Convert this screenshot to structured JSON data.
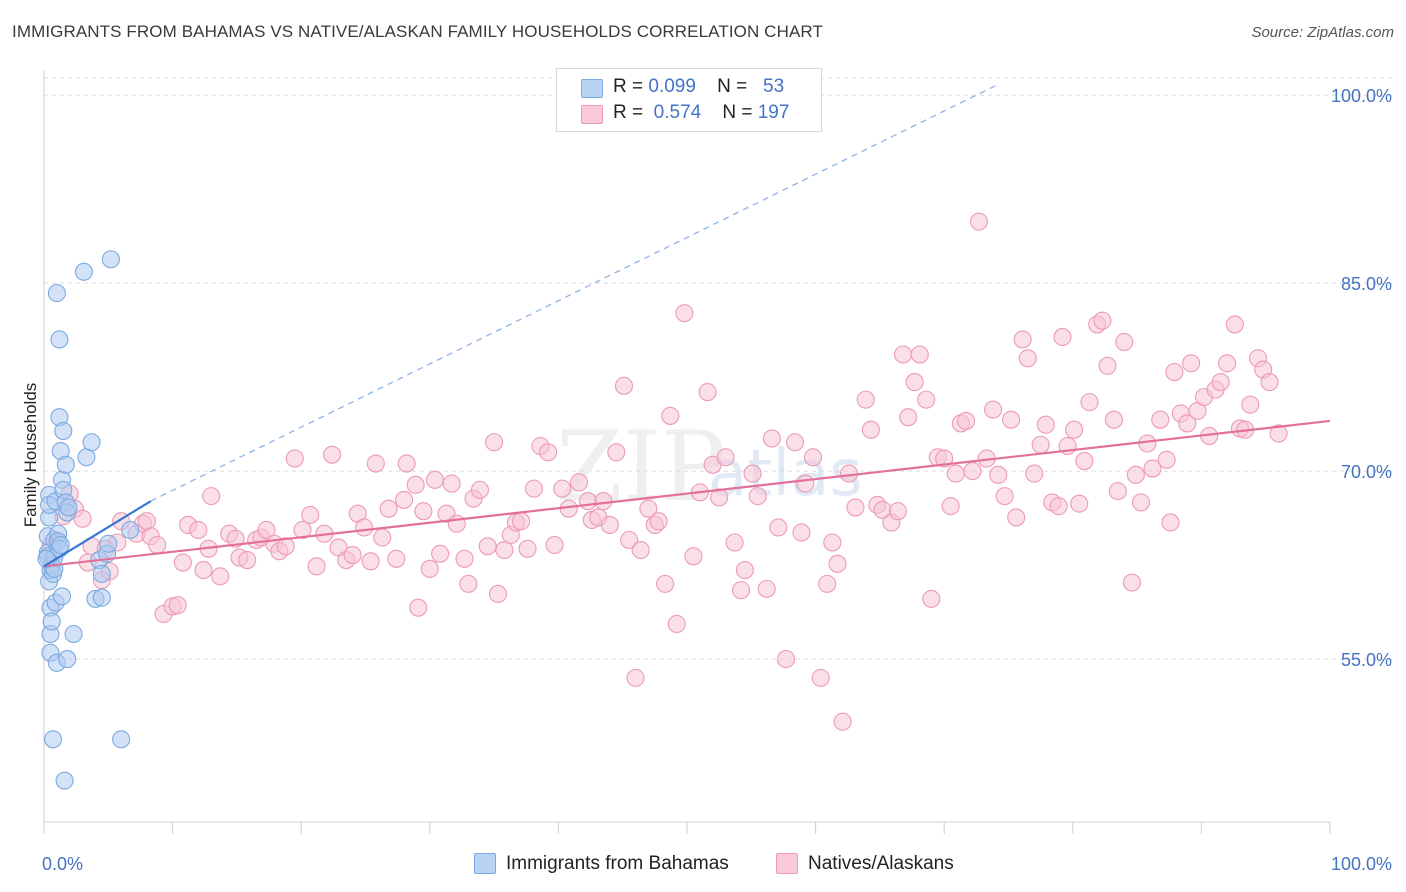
{
  "header": {
    "title": "IMMIGRANTS FROM BAHAMAS VS NATIVE/ALASKAN FAMILY HOUSEHOLDS CORRELATION CHART",
    "source": "Source: ZipAtlas.com"
  },
  "legend": {
    "r_label": "R =",
    "n_label": "N =",
    "rows": [
      {
        "r": "0.099",
        "n": "53"
      },
      {
        "r": "0.574",
        "n": "197"
      }
    ]
  },
  "watermark": {
    "zip": "ZIP",
    "atlas": "atlas"
  },
  "colors": {
    "blue_fill": "#aecbf0",
    "blue_stroke": "#7aaae0",
    "blue_line": "#3a78d4",
    "pink_fill": "#f8c4d4",
    "pink_stroke": "#ec9ab6",
    "pink_line": "#e2709a",
    "tick_text": "#4472c4"
  },
  "chart_data": {
    "type": "scatter",
    "title": "IMMIGRANTS FROM BAHAMAS VS NATIVE/ALASKAN FAMILY HOUSEHOLDS CORRELATION CHART",
    "xlabel": "",
    "ylabel": "Family Households",
    "xlim": [
      0,
      100
    ],
    "ylim": [
      42,
      102
    ],
    "x_tick_labels": [
      "0.0%",
      "100.0%"
    ],
    "y_ticks": [
      55,
      70,
      85,
      100
    ],
    "y_tick_labels": [
      "55.0%",
      "70.0%",
      "85.0%",
      "100.0%"
    ],
    "grid": true,
    "series": [
      {
        "name": "Immigrants from Bahamas",
        "r": 0.099,
        "n": 53,
        "trend": {
          "x": [
            0,
            8.3
          ],
          "y": [
            62.4,
            67.6
          ]
        },
        "trend_extension": {
          "x": [
            8.3,
            74.1
          ],
          "y": [
            67.6,
            100.8
          ]
        },
        "points": [
          [
            0.3,
            63.5
          ],
          [
            0.3,
            64.8
          ],
          [
            0.3,
            63.2
          ],
          [
            0.4,
            61.2
          ],
          [
            0.4,
            66.3
          ],
          [
            0.4,
            68.1
          ],
          [
            0.4,
            67.3
          ],
          [
            0.5,
            62.1
          ],
          [
            0.5,
            59.1
          ],
          [
            0.5,
            55.5
          ],
          [
            0.5,
            57.0
          ],
          [
            0.6,
            58.0
          ],
          [
            0.6,
            62.5
          ],
          [
            0.7,
            61.8
          ],
          [
            0.7,
            48.6
          ],
          [
            0.8,
            62.2
          ],
          [
            0.8,
            64.5
          ],
          [
            0.8,
            63.1
          ],
          [
            0.9,
            59.5
          ],
          [
            0.9,
            67.6
          ],
          [
            1.0,
            84.2
          ],
          [
            1.0,
            54.7
          ],
          [
            1.1,
            65.0
          ],
          [
            1.1,
            64.4
          ],
          [
            1.2,
            80.5
          ],
          [
            1.2,
            63.8
          ],
          [
            1.2,
            74.3
          ],
          [
            1.3,
            64.1
          ],
          [
            1.3,
            71.6
          ],
          [
            1.4,
            60.0
          ],
          [
            1.4,
            69.3
          ],
          [
            1.5,
            73.2
          ],
          [
            1.5,
            68.5
          ],
          [
            1.6,
            45.3
          ],
          [
            1.7,
            67.5
          ],
          [
            1.7,
            70.5
          ],
          [
            1.8,
            66.7
          ],
          [
            1.8,
            55.0
          ],
          [
            1.9,
            67.1
          ],
          [
            2.3,
            57.0
          ],
          [
            3.1,
            85.9
          ],
          [
            3.3,
            71.1
          ],
          [
            3.7,
            72.3
          ],
          [
            4.0,
            59.8
          ],
          [
            4.3,
            62.9
          ],
          [
            4.5,
            61.8
          ],
          [
            4.5,
            59.9
          ],
          [
            4.9,
            63.4
          ],
          [
            5.0,
            64.2
          ],
          [
            5.2,
            86.9
          ],
          [
            6.0,
            48.6
          ],
          [
            6.7,
            65.3
          ],
          [
            0.2,
            63.0
          ]
        ]
      },
      {
        "name": "Natives/Alaskans",
        "r": 0.574,
        "n": 197,
        "trend": {
          "x": [
            0,
            100
          ],
          "y": [
            62.4,
            74.0
          ]
        },
        "points": [
          [
            0.5,
            64.0
          ],
          [
            0.7,
            63.3
          ],
          [
            1.0,
            64.3
          ],
          [
            1.5,
            66.4
          ],
          [
            2.0,
            68.2
          ],
          [
            2.4,
            67.0
          ],
          [
            3.0,
            66.2
          ],
          [
            3.4,
            62.7
          ],
          [
            3.7,
            64.0
          ],
          [
            4.5,
            61.3
          ],
          [
            4.8,
            63.8
          ],
          [
            5.1,
            62.0
          ],
          [
            5.7,
            64.3
          ],
          [
            6.0,
            66.0
          ],
          [
            7.2,
            65.0
          ],
          [
            7.7,
            65.8
          ],
          [
            8.0,
            66.0
          ],
          [
            8.3,
            64.8
          ],
          [
            8.8,
            64.1
          ],
          [
            9.3,
            58.6
          ],
          [
            10.0,
            59.2
          ],
          [
            10.4,
            59.3
          ],
          [
            10.8,
            62.7
          ],
          [
            11.2,
            65.7
          ],
          [
            12.0,
            65.3
          ],
          [
            12.4,
            62.1
          ],
          [
            12.8,
            63.8
          ],
          [
            13.0,
            68.0
          ],
          [
            13.7,
            61.6
          ],
          [
            14.4,
            65.0
          ],
          [
            14.9,
            64.6
          ],
          [
            15.2,
            63.1
          ],
          [
            15.8,
            62.9
          ],
          [
            16.5,
            64.5
          ],
          [
            16.9,
            64.7
          ],
          [
            17.3,
            65.3
          ],
          [
            17.9,
            64.2
          ],
          [
            18.3,
            63.6
          ],
          [
            18.8,
            64.0
          ],
          [
            19.5,
            71.0
          ],
          [
            20.1,
            65.3
          ],
          [
            20.7,
            66.5
          ],
          [
            21.2,
            62.4
          ],
          [
            21.8,
            65.0
          ],
          [
            22.4,
            71.3
          ],
          [
            22.9,
            63.9
          ],
          [
            23.5,
            62.9
          ],
          [
            24.0,
            63.3
          ],
          [
            24.4,
            66.6
          ],
          [
            24.9,
            65.5
          ],
          [
            25.4,
            62.8
          ],
          [
            25.8,
            70.6
          ],
          [
            26.3,
            64.7
          ],
          [
            26.8,
            67.0
          ],
          [
            27.4,
            63.0
          ],
          [
            28.0,
            67.7
          ],
          [
            28.2,
            70.6
          ],
          [
            28.9,
            68.9
          ],
          [
            29.1,
            59.1
          ],
          [
            29.5,
            66.8
          ],
          [
            30.0,
            62.2
          ],
          [
            30.4,
            69.3
          ],
          [
            30.8,
            63.4
          ],
          [
            31.3,
            66.6
          ],
          [
            31.7,
            69.0
          ],
          [
            32.1,
            65.8
          ],
          [
            32.7,
            63.0
          ],
          [
            33.0,
            61.0
          ],
          [
            33.4,
            67.8
          ],
          [
            33.9,
            68.5
          ],
          [
            34.5,
            64.0
          ],
          [
            35.0,
            72.3
          ],
          [
            35.3,
            60.2
          ],
          [
            35.8,
            63.7
          ],
          [
            36.3,
            64.9
          ],
          [
            36.7,
            65.9
          ],
          [
            37.1,
            66.0
          ],
          [
            37.6,
            63.8
          ],
          [
            38.1,
            68.6
          ],
          [
            38.6,
            72.0
          ],
          [
            39.2,
            71.5
          ],
          [
            39.7,
            64.1
          ],
          [
            40.3,
            68.6
          ],
          [
            40.8,
            67.0
          ],
          [
            41.6,
            69.1
          ],
          [
            42.3,
            67.6
          ],
          [
            42.6,
            66.1
          ],
          [
            43.1,
            66.3
          ],
          [
            43.5,
            67.6
          ],
          [
            44.0,
            65.7
          ],
          [
            44.5,
            71.5
          ],
          [
            45.1,
            76.8
          ],
          [
            45.5,
            64.5
          ],
          [
            46.0,
            53.5
          ],
          [
            46.4,
            63.7
          ],
          [
            47.0,
            67.0
          ],
          [
            47.5,
            65.7
          ],
          [
            47.8,
            66.0
          ],
          [
            48.3,
            61.0
          ],
          [
            48.7,
            74.4
          ],
          [
            49.2,
            57.8
          ],
          [
            49.8,
            82.6
          ],
          [
            50.5,
            63.2
          ],
          [
            51.0,
            68.3
          ],
          [
            51.6,
            76.3
          ],
          [
            52.0,
            70.5
          ],
          [
            52.5,
            67.9
          ],
          [
            53.0,
            71.1
          ],
          [
            53.7,
            64.3
          ],
          [
            54.2,
            60.5
          ],
          [
            54.5,
            62.1
          ],
          [
            55.1,
            69.8
          ],
          [
            55.5,
            68.0
          ],
          [
            56.2,
            60.6
          ],
          [
            56.6,
            72.6
          ],
          [
            57.1,
            65.5
          ],
          [
            57.7,
            55.0
          ],
          [
            58.4,
            72.3
          ],
          [
            58.9,
            65.1
          ],
          [
            59.2,
            69.0
          ],
          [
            59.8,
            71.1
          ],
          [
            60.4,
            53.5
          ],
          [
            60.9,
            61.0
          ],
          [
            61.3,
            64.3
          ],
          [
            61.7,
            62.6
          ],
          [
            62.1,
            50.0
          ],
          [
            62.6,
            69.8
          ],
          [
            63.1,
            67.1
          ],
          [
            63.9,
            75.7
          ],
          [
            64.3,
            73.3
          ],
          [
            64.8,
            67.3
          ],
          [
            65.2,
            66.9
          ],
          [
            65.9,
            65.9
          ],
          [
            66.4,
            66.8
          ],
          [
            66.8,
            79.3
          ],
          [
            67.2,
            74.3
          ],
          [
            67.7,
            77.1
          ],
          [
            68.1,
            79.3
          ],
          [
            68.6,
            75.7
          ],
          [
            69.0,
            59.8
          ],
          [
            69.5,
            71.1
          ],
          [
            70.0,
            71.0
          ],
          [
            70.5,
            67.2
          ],
          [
            70.9,
            69.8
          ],
          [
            71.3,
            73.8
          ],
          [
            71.7,
            74.0
          ],
          [
            72.2,
            70.0
          ],
          [
            72.7,
            89.9
          ],
          [
            73.3,
            71.0
          ],
          [
            73.8,
            74.9
          ],
          [
            74.2,
            69.7
          ],
          [
            74.7,
            68.0
          ],
          [
            75.2,
            74.1
          ],
          [
            75.6,
            66.3
          ],
          [
            76.1,
            80.5
          ],
          [
            76.5,
            79.0
          ],
          [
            77.0,
            69.8
          ],
          [
            77.5,
            72.1
          ],
          [
            77.9,
            73.7
          ],
          [
            78.4,
            67.5
          ],
          [
            78.9,
            67.2
          ],
          [
            79.2,
            80.7
          ],
          [
            79.6,
            72.0
          ],
          [
            80.1,
            73.3
          ],
          [
            80.5,
            67.4
          ],
          [
            80.9,
            70.8
          ],
          [
            81.3,
            75.5
          ],
          [
            81.9,
            81.7
          ],
          [
            82.3,
            82.0
          ],
          [
            82.7,
            78.4
          ],
          [
            83.2,
            74.1
          ],
          [
            83.5,
            68.4
          ],
          [
            84.0,
            80.3
          ],
          [
            84.6,
            61.1
          ],
          [
            84.9,
            69.7
          ],
          [
            85.3,
            67.5
          ],
          [
            85.8,
            72.2
          ],
          [
            86.2,
            70.2
          ],
          [
            86.8,
            74.1
          ],
          [
            87.3,
            70.9
          ],
          [
            87.6,
            65.9
          ],
          [
            87.9,
            77.9
          ],
          [
            88.4,
            74.6
          ],
          [
            88.9,
            73.8
          ],
          [
            89.2,
            78.6
          ],
          [
            89.7,
            74.8
          ],
          [
            90.2,
            75.9
          ],
          [
            90.6,
            72.8
          ],
          [
            91.1,
            76.5
          ],
          [
            91.5,
            77.1
          ],
          [
            92.0,
            78.6
          ],
          [
            92.6,
            81.7
          ],
          [
            93.0,
            73.4
          ],
          [
            93.4,
            73.3
          ],
          [
            93.8,
            75.3
          ],
          [
            94.4,
            79.0
          ],
          [
            94.8,
            78.1
          ],
          [
            95.3,
            77.1
          ],
          [
            96.0,
            73.0
          ]
        ]
      }
    ]
  },
  "bottom_legend": {
    "items": [
      "Immigrants from Bahamas",
      "Natives/Alaskans"
    ]
  }
}
